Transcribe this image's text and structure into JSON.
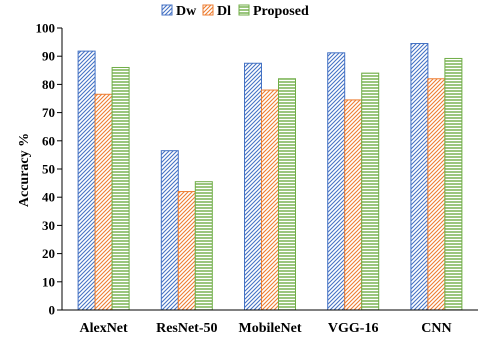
{
  "chart_data": {
    "type": "bar",
    "categories": [
      "AlexNet",
      "ResNet-50",
      "MobileNet",
      "VGG-16",
      "CNN"
    ],
    "series": [
      {
        "name": "Dw",
        "values": [
          91.8,
          56.5,
          87.5,
          91.2,
          94.5
        ],
        "color": "#4472c4",
        "pattern": "diagonal-hatch"
      },
      {
        "name": "Dl",
        "values": [
          76.5,
          42.0,
          78.0,
          74.5,
          82.0
        ],
        "color": "#ed7d31",
        "pattern": "diagonal-hatch"
      },
      {
        "name": "Proposed",
        "values": [
          86.0,
          45.5,
          82.0,
          84.0,
          89.2
        ],
        "color": "#70ad47",
        "pattern": "horizontal-lines"
      }
    ],
    "xlabel": "",
    "ylabel": "Accuracy %",
    "ylim": [
      0,
      100
    ],
    "yticks": [
      0,
      10,
      20,
      30,
      40,
      50,
      60,
      70,
      80,
      90,
      100
    ],
    "grid": false,
    "legend_position": "top"
  }
}
